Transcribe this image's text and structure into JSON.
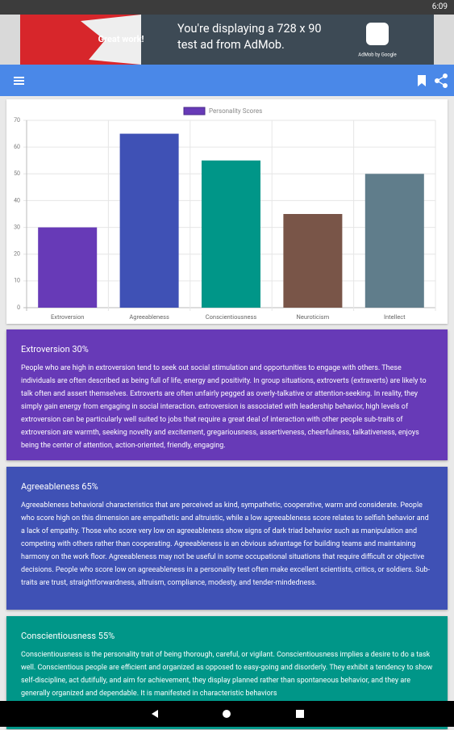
{
  "status_bar": {
    "time": "6:09"
  },
  "ad": {
    "badge": "Great work!",
    "text": "You're displaying a 728 x 90 test ad from AdMob.",
    "brand": "AdMob by Google"
  },
  "chart_data": {
    "type": "bar",
    "categories": [
      "Extroversion",
      "Agreeableness",
      "Conscientiousness",
      "Neuroticism",
      "Intellect"
    ],
    "series": [
      {
        "name": "Personality Scores",
        "values": [
          30,
          65,
          55,
          35,
          50
        ],
        "colors": [
          "#673ab7",
          "#3f51b5",
          "#009688",
          "#795548",
          "#607d8b"
        ]
      }
    ],
    "ylim": [
      0,
      70
    ],
    "yticks": [
      0,
      10,
      20,
      30,
      40,
      50,
      60,
      70
    ],
    "grid": true
  },
  "cards": [
    {
      "title": "Extroversion 30%",
      "color": "#673ab7",
      "body": "People who are high in extroversion tend to seek out social stimulation and opportunities to engage with others. These individuals are often described as being full of life, energy and positivity. In group situations, extroverts (extraverts) are likely to talk often and assert themselves. Extroverts are often unfairly pegged as overly-talkative or attention-seeking. In reality, they simply gain energy from engaging in social interaction. extroversion is associated with leadership behavior, high levels of extroversion can be particularly well suited to jobs that require a great deal of interaction with other people sub-traits of extroversion are warmth, seeking novelty and excitement, gregariousness, assertiveness, cheerfulness, talkativeness, enjoys being the center of attention, action-oriented, friendly, engaging."
    },
    {
      "title": "Agreeableness 65%",
      "color": "#3f51b5",
      "body": "Agreeableness behavioral characteristics that are perceived as kind, sympathetic, cooperative, warm and considerate. People who score high on this dimension are empathetic and altruistic, while a low agreeableness score relates to selfish behavior and a lack of empathy. Those who score very low on agreeableness show signs of dark triad behavior such as manipulation and competing with others rather than cooperating. Agreeableness is an obvious advantage for building teams and maintaining harmony on the work floor. Agreeableness may not be useful in some occupational situations that require difficult or objective decisions. People who score low on agreeableness in a personality test often make excellent scientists, critics, or soldiers. Sub-traits are trust, straightforwardness, altruism, compliance, modesty, and tender-mindedness."
    },
    {
      "title": "Conscientiousness 55%",
      "color": "#009688",
      "body": "Conscientiousness is the personality trait of being thorough, careful, or vigilant. Conscientiousness implies a desire to do a task well. Conscientious people are efficient and organized as opposed to easy-going and disorderly. They exhibit a tendency to show self-discipline, act dutifully, and aim for achievement, they display planned rather than spontaneous behavior, and they are generally organized and dependable. It is manifested in characteristic behaviors"
    }
  ]
}
